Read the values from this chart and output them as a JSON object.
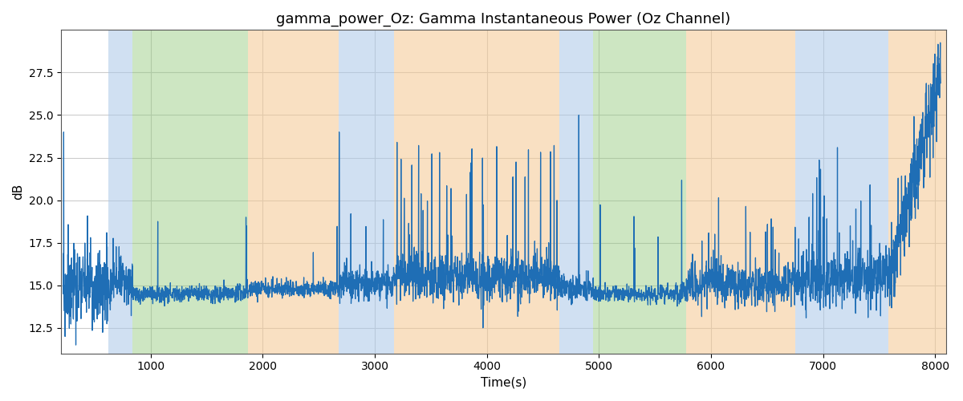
{
  "title": "gamma_power_Oz: Gamma Instantaneous Power (Oz Channel)",
  "xlabel": "Time(s)",
  "ylabel": "dB",
  "xlim": [
    200,
    8100
  ],
  "ylim": [
    11,
    30
  ],
  "yticks": [
    12.5,
    15.0,
    17.5,
    20.0,
    22.5,
    25.0,
    27.5
  ],
  "xticks": [
    1000,
    2000,
    3000,
    4000,
    5000,
    6000,
    7000,
    8000
  ],
  "line_color": "#1f6eb5",
  "line_width": 0.9,
  "bg_color": "white",
  "grid_color": "#cccccc",
  "bands": [
    {
      "xmin": 620,
      "xmax": 840,
      "color": "#aac8e8",
      "alpha": 0.55
    },
    {
      "xmin": 840,
      "xmax": 1870,
      "color": "#90c878",
      "alpha": 0.45
    },
    {
      "xmin": 1870,
      "xmax": 2680,
      "color": "#f5c890",
      "alpha": 0.55
    },
    {
      "xmin": 2680,
      "xmax": 3170,
      "color": "#aac8e8",
      "alpha": 0.55
    },
    {
      "xmin": 3170,
      "xmax": 4650,
      "color": "#f5c890",
      "alpha": 0.55
    },
    {
      "xmin": 4650,
      "xmax": 4950,
      "color": "#aac8e8",
      "alpha": 0.55
    },
    {
      "xmin": 4950,
      "xmax": 5780,
      "color": "#90c878",
      "alpha": 0.45
    },
    {
      "xmin": 5780,
      "xmax": 6750,
      "color": "#f5c890",
      "alpha": 0.55
    },
    {
      "xmin": 6750,
      "xmax": 7580,
      "color": "#aac8e8",
      "alpha": 0.55
    },
    {
      "xmin": 7580,
      "xmax": 8100,
      "color": "#f5c890",
      "alpha": 0.55
    }
  ],
  "figsize": [
    12,
    5
  ],
  "dpi": 100
}
